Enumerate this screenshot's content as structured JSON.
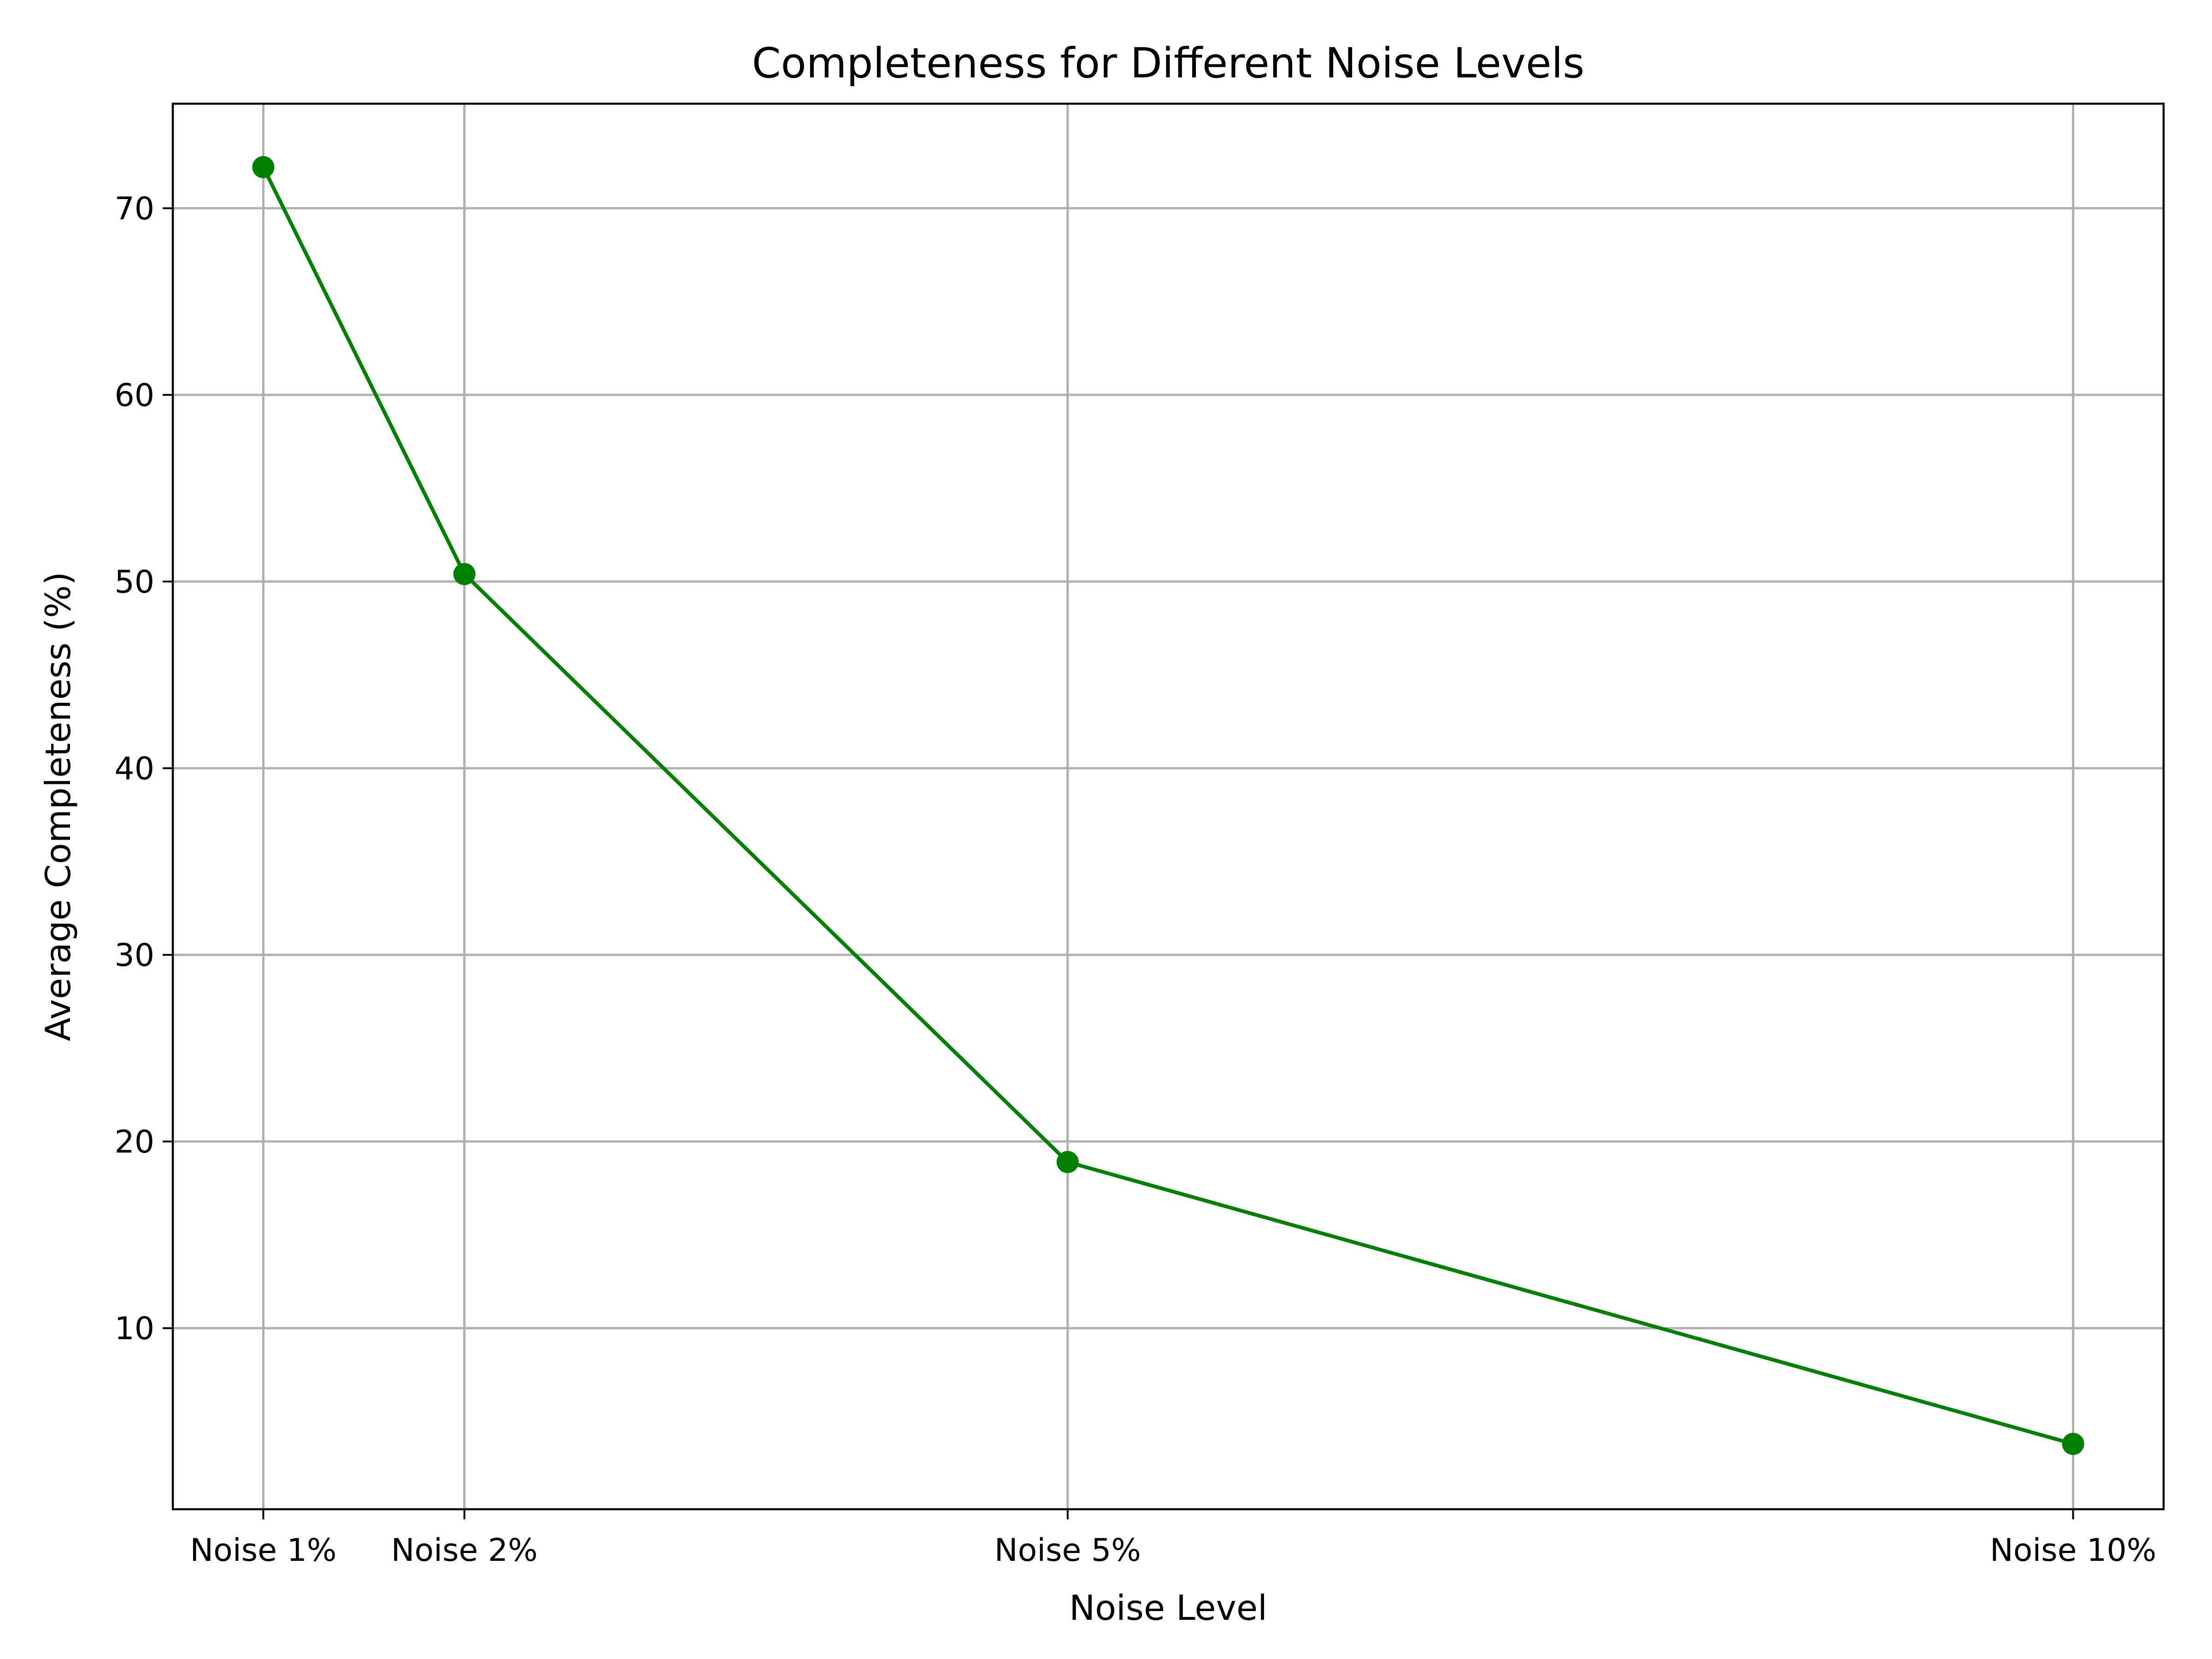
{
  "chart_data": {
    "type": "line",
    "title": "Completeness for Different Noise Levels",
    "xlabel": "Noise Level",
    "ylabel": "Average Completeness (%)",
    "x": [
      1,
      2,
      5,
      10
    ],
    "x_tick_labels": [
      "Noise 1%",
      "Noise 2%",
      "Noise 5%",
      "Noise 10%"
    ],
    "xlim": [
      0.55,
      10.45
    ],
    "ylim": [
      0.3,
      75.6
    ],
    "y_ticks": [
      10,
      20,
      30,
      40,
      50,
      60,
      70
    ],
    "grid": true,
    "series": [
      {
        "color": "#008000",
        "marker": "circle",
        "values": [
          72.2,
          50.4,
          18.9,
          3.8
        ]
      }
    ]
  }
}
